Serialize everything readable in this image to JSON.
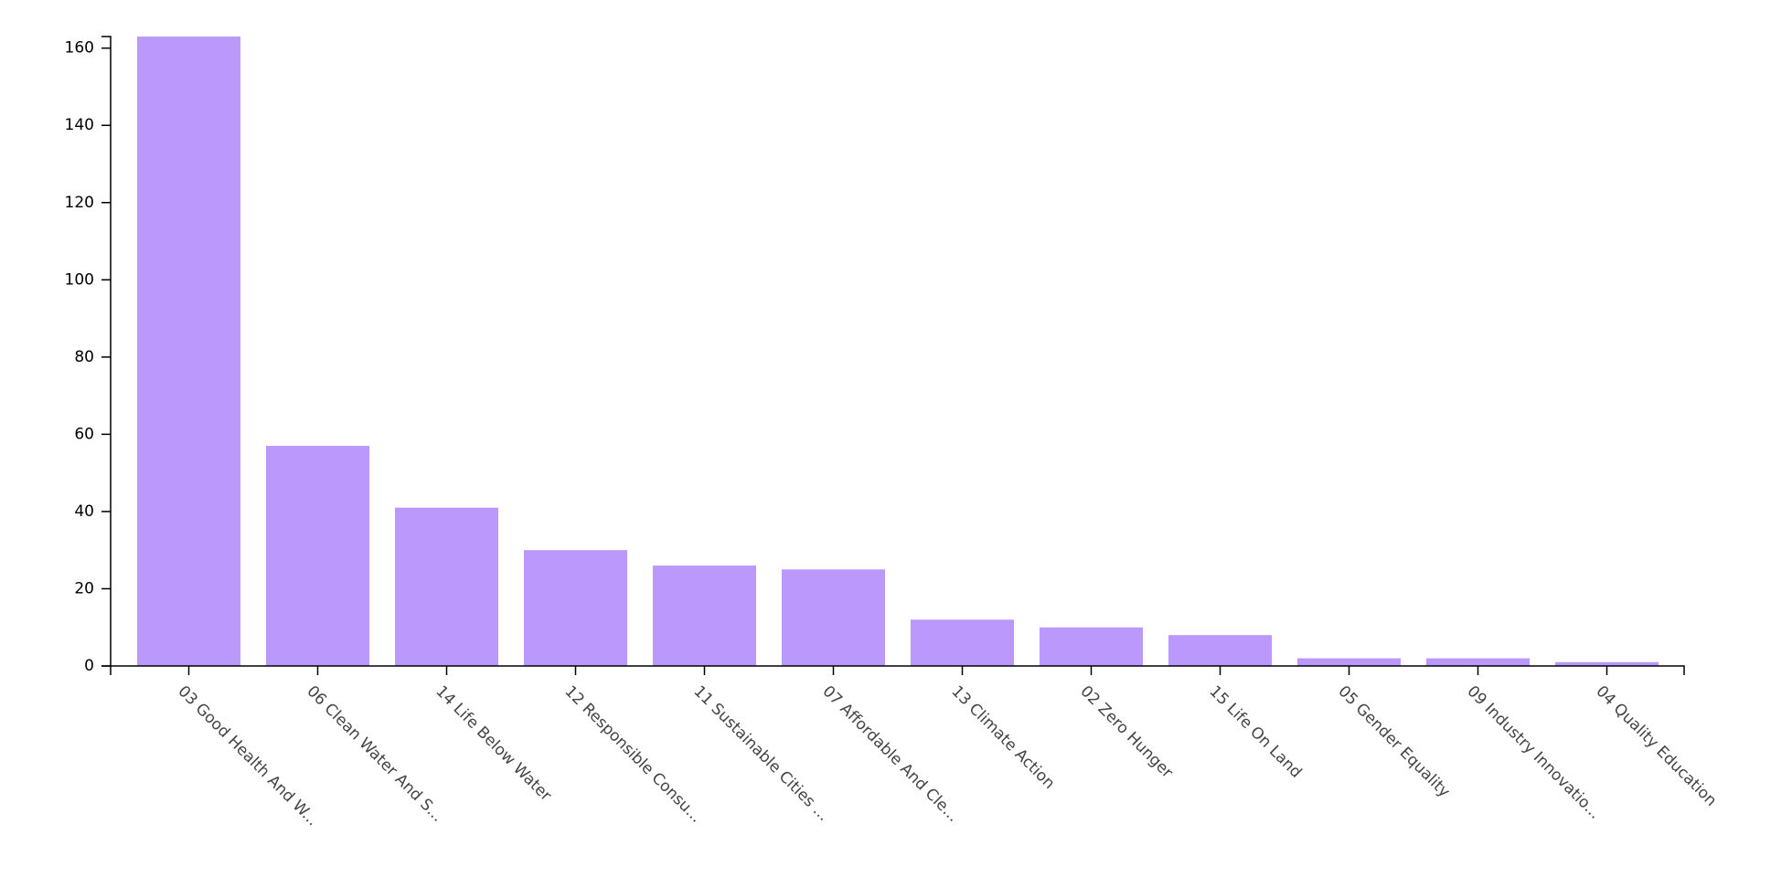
{
  "chart_data": {
    "type": "bar",
    "title": "",
    "xlabel": "",
    "ylabel": "",
    "categories": [
      "03 Good Health And W...",
      "06 Clean Water And S...",
      "14 Life Below Water",
      "12 Responsible Consu...",
      "11 Sustainable Cities ...",
      "07 Affordable And Cle...",
      "13 Climate Action",
      "02 Zero Hunger",
      "15 Life On Land",
      "05 Gender Equality",
      "09 Industry Innovatio...",
      "04 Quality Education"
    ],
    "values": [
      163,
      57,
      41,
      30,
      26,
      25,
      12,
      10,
      8,
      2,
      2,
      1
    ],
    "ylim": [
      0,
      163
    ],
    "yticks": [
      0,
      20,
      40,
      60,
      80,
      100,
      120,
      140,
      160
    ],
    "bar_color": "#bb99fc",
    "grid": false
  }
}
